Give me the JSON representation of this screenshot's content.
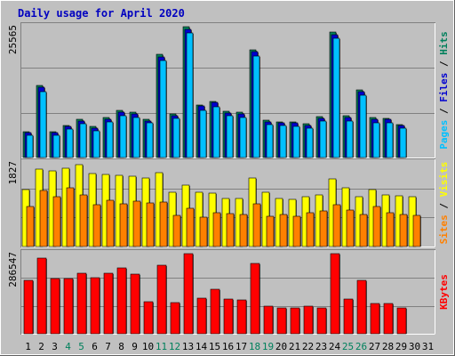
{
  "colors": {
    "page_bg": "#c0c0c0",
    "panel_bg": "#c0c0c0",
    "title": "#0000c0",
    "hits": "#00805c",
    "files": "#0000d0",
    "pages": "#00c0ff",
    "visits": "#ffff00",
    "sites": "#ff8000",
    "kbytes": "#ff0000",
    "weekend_label": "#00805c",
    "weekday_label": "#000000"
  },
  "chart_data": {
    "type": "bar",
    "title": "Daily usage for April 2020",
    "categories": [
      "1",
      "2",
      "3",
      "4",
      "5",
      "6",
      "7",
      "8",
      "9",
      "10",
      "11",
      "12",
      "13",
      "14",
      "15",
      "16",
      "17",
      "18",
      "19",
      "20",
      "21",
      "22",
      "23",
      "24",
      "25",
      "26",
      "27",
      "28",
      "29",
      "30",
      "31"
    ],
    "weekend_days": [
      "4",
      "5",
      "11",
      "12",
      "18",
      "19",
      "25",
      "26"
    ],
    "panels": [
      {
        "name": "top",
        "ymax_label": "25565",
        "ymax": 25565,
        "right_labels": [
          "Pages",
          "Files",
          "Hits"
        ],
        "series": [
          {
            "name": "Hits",
            "color": "#00805c",
            "values": [
              5100,
              14100,
              5100,
              6300,
              7500,
              6000,
              7800,
              9200,
              8800,
              7500,
              20100,
              8500,
              25565,
              10300,
              11000,
              9000,
              8800,
              21100,
              7300,
              7000,
              7000,
              6600,
              8000,
              24500,
              8100,
              13200,
              7800,
              7700,
              6500,
              0,
              0
            ]
          },
          {
            "name": "Files",
            "color": "#0000d0",
            "values": [
              4800,
              13700,
              4800,
              6000,
              7200,
              5700,
              7500,
              8900,
              8500,
              7200,
              19700,
              8200,
              25000,
              10000,
              10700,
              8700,
              8500,
              20700,
              7000,
              6700,
              6700,
              6300,
              7700,
              24000,
              7800,
              12800,
              7500,
              7400,
              6200,
              0,
              0
            ]
          },
          {
            "name": "Pages",
            "color": "#00c0ff",
            "values": [
              4300,
              12900,
              4400,
              5500,
              6600,
              5200,
              6900,
              8200,
              7900,
              6700,
              19000,
              7600,
              24300,
              9300,
              9900,
              8100,
              7900,
              19900,
              6500,
              6200,
              6100,
              5700,
              7100,
              23300,
              7100,
              12100,
              6800,
              6700,
              5700,
              0,
              0
            ]
          }
        ]
      },
      {
        "name": "middle",
        "ymax_label": "1827",
        "ymax": 1827,
        "right_labels": [
          "Sites",
          "Visits"
        ],
        "series": [
          {
            "name": "Visits",
            "color": "#ffff00",
            "values": [
              1250,
              1700,
              1650,
              1720,
              1780,
              1600,
              1580,
              1560,
              1530,
              1490,
              1620,
              1180,
              1340,
              1180,
              1160,
              1050,
              1040,
              1500,
              1180,
              1040,
              1030,
              1080,
              1120,
              1480,
              1280,
              1080,
              1240,
              1120,
              1100,
              1080,
              0
            ]
          },
          {
            "name": "Sites",
            "color": "#ff8000",
            "values": [
              870,
              1230,
              1080,
              1280,
              1130,
              920,
              1010,
              940,
              990,
              960,
              980,
              680,
              830,
              640,
              740,
              720,
              690,
              930,
              660,
              700,
              660,
              740,
              780,
              920,
              800,
              690,
              870,
              730,
              700,
              680,
              0
            ]
          }
        ]
      },
      {
        "name": "bottom",
        "ymax_label": "286547",
        "ymax": 286547,
        "right_labels": [
          "KBytes"
        ],
        "series": [
          {
            "name": "KBytes",
            "color": "#ff0000",
            "values": [
              190000,
              272000,
              198000,
              198000,
              216000,
              200000,
              218000,
              237000,
              212000,
              115000,
              245000,
              110000,
              286547,
              128000,
              160000,
              125000,
              122000,
              252000,
              100000,
              92000,
              92000,
              99000,
              92000,
              286547,
              124000,
              191000,
              108000,
              108000,
              93000,
              0,
              0
            ]
          }
        ]
      }
    ]
  }
}
